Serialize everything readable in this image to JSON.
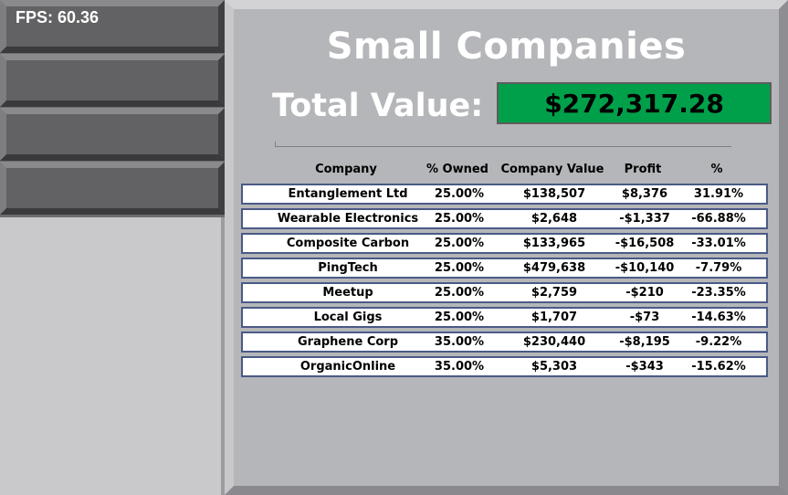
{
  "hud": {
    "fps": "FPS: 60.36"
  },
  "sidebar": {
    "buttons": [
      "",
      "",
      "",
      ""
    ]
  },
  "main": {
    "title": "Small Companies",
    "total_label": "Total Value:",
    "total_value": "$272,317.28",
    "colors": {
      "total_bg": "#00a04a",
      "row_border": "#4a5a86"
    }
  },
  "table": {
    "headers": [
      "Company",
      "% Owned",
      "Company Value",
      "Profit",
      "%"
    ],
    "rows": [
      [
        "Entanglement Ltd",
        "25.00%",
        "$138,507",
        "$8,376",
        "31.91%"
      ],
      [
        "Wearable Electronics",
        "25.00%",
        "$2,648",
        "-$1,337",
        "-66.88%"
      ],
      [
        "Composite Carbon",
        "25.00%",
        "$133,965",
        "-$16,508",
        "-33.01%"
      ],
      [
        "PingTech",
        "25.00%",
        "$479,638",
        "-$10,140",
        "-7.79%"
      ],
      [
        "Meetup",
        "25.00%",
        "$2,759",
        "-$210",
        "-23.35%"
      ],
      [
        "Local Gigs",
        "25.00%",
        "$1,707",
        "-$73",
        "-14.63%"
      ],
      [
        "Graphene Corp",
        "35.00%",
        "$230,440",
        "-$8,195",
        "-9.22%"
      ],
      [
        "OrganicOnline",
        "35.00%",
        "$5,303",
        "-$343",
        "-15.62%"
      ]
    ]
  }
}
